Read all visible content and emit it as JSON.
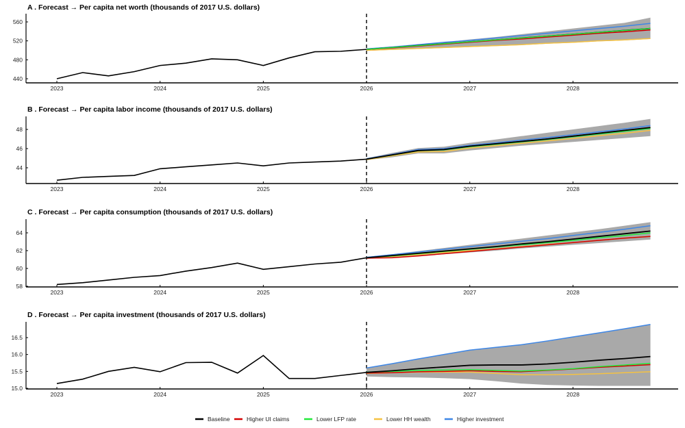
{
  "chart_data": [
    {
      "type": "line",
      "title": "A . Forecast → Per capita net worth (thousands of 2017 U.S. dollars)",
      "xticks": [
        "2023",
        "2024",
        "2025",
        "2026",
        "2027",
        "2028"
      ],
      "yticks": [
        "440",
        "480",
        "520",
        "560"
      ],
      "ylim": [
        437,
        575
      ],
      "forecast_start": 2026,
      "history": {
        "x_start": 2023.0,
        "step": 0.25,
        "values": [
          440,
          453,
          446,
          455,
          468,
          473,
          482,
          480,
          468,
          484,
          497,
          498,
          502
        ]
      },
      "band": {
        "upper": [
          503,
          507,
          512,
          517,
          523,
          528,
          534,
          540,
          546,
          552,
          558,
          569
        ],
        "lower": [
          499,
          501,
          503,
          505,
          507,
          509,
          511,
          514,
          516,
          519,
          521,
          524
        ]
      },
      "series": [
        {
          "name": "Baseline",
          "values": [
            502,
            506,
            510,
            514,
            518,
            522,
            526,
            530,
            534,
            538,
            542,
            546
          ]
        },
        {
          "name": "Higher UI claims",
          "values": [
            502,
            505,
            509,
            513,
            517,
            521,
            524,
            528,
            532,
            536,
            539,
            543
          ]
        },
        {
          "name": "Lower LFP rate",
          "values": [
            502,
            506,
            510,
            514,
            518,
            522,
            526,
            530,
            534,
            538,
            542,
            546
          ]
        },
        {
          "name": "Lower HH wealth",
          "values": [
            500,
            502,
            504,
            506,
            508,
            510,
            512,
            515,
            517,
            520,
            522,
            525
          ]
        },
        {
          "name": "Higher investment",
          "values": [
            503,
            507,
            512,
            517,
            521,
            526,
            531,
            536,
            541,
            546,
            551,
            557
          ]
        }
      ]
    },
    {
      "type": "line",
      "title": "B . Forecast → Per capita labor income (thousands of 2017 U.S. dollars)",
      "xticks": [
        "2023",
        "2024",
        "2025",
        "2026",
        "2027",
        "2028"
      ],
      "yticks": [
        "44",
        "46",
        "48"
      ],
      "ylim": [
        42.6,
        49.5
      ],
      "forecast_start": 2026,
      "history": {
        "x_start": 2023.0,
        "step": 0.25,
        "values": [
          42.7,
          43.0,
          43.1,
          43.2,
          43.9,
          44.1,
          44.3,
          44.5,
          44.2,
          44.5,
          44.6,
          44.7,
          44.9
        ]
      },
      "band": {
        "upper": [
          45.0,
          45.55,
          46.05,
          46.2,
          46.6,
          46.95,
          47.3,
          47.65,
          48.0,
          48.35,
          48.7,
          49.1
        ],
        "lower": [
          44.8,
          45.1,
          45.5,
          45.5,
          45.8,
          46.05,
          46.3,
          46.5,
          46.7,
          46.9,
          47.1,
          47.3
        ]
      },
      "series": [
        {
          "name": "Baseline",
          "values": [
            44.9,
            45.35,
            45.8,
            45.9,
            46.25,
            46.5,
            46.75,
            47.0,
            47.3,
            47.6,
            47.9,
            48.2
          ]
        },
        {
          "name": "Higher UI claims",
          "values": [
            44.9,
            45.35,
            45.8,
            45.9,
            46.25,
            46.5,
            46.75,
            47.0,
            47.3,
            47.6,
            47.9,
            48.2
          ]
        },
        {
          "name": "Lower LFP rate",
          "values": [
            44.9,
            45.33,
            45.78,
            45.87,
            46.2,
            46.45,
            46.7,
            46.95,
            47.23,
            47.52,
            47.8,
            48.1
          ]
        },
        {
          "name": "Lower HH wealth",
          "values": [
            44.85,
            45.25,
            45.65,
            45.7,
            46.05,
            46.3,
            46.55,
            46.8,
            47.05,
            47.35,
            47.6,
            47.9
          ]
        },
        {
          "name": "Higher investment",
          "values": [
            44.95,
            45.4,
            45.9,
            46.0,
            46.35,
            46.6,
            46.88,
            47.15,
            47.45,
            47.75,
            48.05,
            48.4
          ]
        }
      ]
    },
    {
      "type": "line",
      "title": "C . Forecast → Per capita consumption (thousands of 2017 U.S. dollars)",
      "xticks": [
        "2023",
        "2024",
        "2025",
        "2026",
        "2027",
        "2028"
      ],
      "yticks": [
        "58",
        "60",
        "62",
        "64"
      ],
      "ylim": [
        57.9,
        65.5
      ],
      "forecast_start": 2026,
      "history": {
        "x_start": 2023.0,
        "step": 0.25,
        "values": [
          58.2,
          58.4,
          58.7,
          59.0,
          59.2,
          59.7,
          60.1,
          60.6,
          59.9,
          60.2,
          60.5,
          60.7,
          61.2
        ]
      },
      "band": {
        "upper": [
          61.3,
          61.6,
          61.95,
          62.3,
          62.65,
          63.0,
          63.35,
          63.7,
          64.05,
          64.4,
          64.8,
          65.2
        ],
        "lower": [
          61.1,
          61.2,
          61.4,
          61.6,
          61.8,
          62.0,
          62.25,
          62.45,
          62.65,
          62.85,
          63.05,
          63.25
        ]
      },
      "series": [
        {
          "name": "Baseline",
          "values": [
            61.2,
            61.45,
            61.7,
            61.95,
            62.2,
            62.45,
            62.75,
            63.0,
            63.3,
            63.6,
            63.9,
            64.2
          ]
        },
        {
          "name": "Higher UI claims",
          "values": [
            61.15,
            61.2,
            61.4,
            61.65,
            61.9,
            62.15,
            62.4,
            62.65,
            62.9,
            63.15,
            63.4,
            63.6
          ]
        },
        {
          "name": "Lower LFP rate",
          "values": [
            61.2,
            61.4,
            61.65,
            61.9,
            62.15,
            62.4,
            62.65,
            62.9,
            63.15,
            63.45,
            63.7,
            64.0
          ]
        },
        {
          "name": "Lower HH wealth",
          "values": [
            61.2,
            61.35,
            61.55,
            61.8,
            62.0,
            62.2,
            62.45,
            62.7,
            62.9,
            63.15,
            63.4,
            63.6
          ]
        },
        {
          "name": "Higher investment",
          "values": [
            61.25,
            61.55,
            61.85,
            62.15,
            62.45,
            62.75,
            63.05,
            63.35,
            63.7,
            64.05,
            64.4,
            64.8
          ]
        }
      ]
    },
    {
      "type": "line",
      "title": "D . Forecast → Per capita investment (thousands of 2017 U.S. dollars)",
      "xticks": [
        "2023",
        "2024",
        "2025",
        "2026",
        "2027",
        "2028"
      ],
      "yticks": [
        "15.0",
        "15.5",
        "16.0",
        "16.5"
      ],
      "ylim": [
        15.0,
        16.95
      ],
      "forecast_start": 2026,
      "history": {
        "x_start": 2023.0,
        "step": 0.25,
        "values": [
          15.14,
          15.27,
          15.5,
          15.62,
          15.49,
          15.76,
          15.77,
          15.45,
          15.97,
          15.29,
          15.29,
          15.38,
          15.47
        ]
      },
      "band": {
        "upper": [
          15.6,
          15.73,
          15.87,
          16.0,
          16.13,
          16.21,
          16.29,
          16.4,
          16.52,
          16.64,
          16.76,
          16.88
        ],
        "lower": [
          15.35,
          15.33,
          15.32,
          15.3,
          15.27,
          15.21,
          15.14,
          15.1,
          15.08,
          15.07,
          15.07,
          15.07
        ]
      },
      "series": [
        {
          "name": "Baseline",
          "values": [
            15.47,
            15.52,
            15.58,
            15.63,
            15.68,
            15.69,
            15.69,
            15.72,
            15.77,
            15.83,
            15.88,
            15.94
          ]
        },
        {
          "name": "Higher UI claims",
          "values": [
            15.45,
            15.46,
            15.49,
            15.5,
            15.52,
            15.5,
            15.49,
            15.53,
            15.57,
            15.62,
            15.66,
            15.7
          ]
        },
        {
          "name": "Lower LFP rate",
          "values": [
            15.48,
            15.5,
            15.53,
            15.54,
            15.55,
            15.53,
            15.51,
            15.54,
            15.58,
            15.64,
            15.69,
            15.74
          ]
        },
        {
          "name": "Lower HH wealth",
          "values": [
            15.44,
            15.46,
            15.48,
            15.48,
            15.48,
            15.44,
            15.4,
            15.4,
            15.41,
            15.43,
            15.46,
            15.49
          ]
        },
        {
          "name": "Higher investment",
          "values": [
            15.6,
            15.73,
            15.87,
            16.0,
            16.13,
            16.21,
            16.29,
            16.4,
            16.52,
            16.64,
            16.76,
            16.89
          ]
        }
      ]
    }
  ],
  "legend": {
    "placement": "bottom-center",
    "items": [
      {
        "label": "Baseline",
        "color": "#000000"
      },
      {
        "label": "Higher UI claims",
        "color": "#d40000"
      },
      {
        "label": "Lower LFP rate",
        "color": "#22e83a"
      },
      {
        "label": "Lower HH wealth",
        "color": "#f5c242"
      },
      {
        "label": "Higher investment",
        "color": "#3d86e6"
      }
    ]
  },
  "band_color": "#a9a9a9"
}
